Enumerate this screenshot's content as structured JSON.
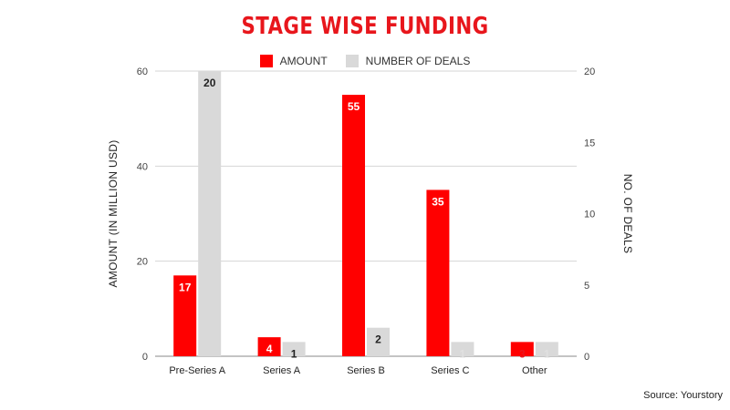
{
  "source": "Source: Yourstory",
  "chart_data": {
    "type": "bar",
    "title": "STAGE WISE FUNDING",
    "categories": [
      "Pre-Series A",
      "Series A",
      "Series B",
      "Series C",
      "Other"
    ],
    "series": [
      {
        "name": "AMOUNT",
        "axis": "left",
        "color": "#ff0000",
        "values": [
          17,
          4,
          55,
          35,
          3
        ],
        "labels": [
          "17",
          "4",
          "55",
          "35",
          "3"
        ],
        "label_colors": [
          "#ffffff",
          "#ffffff",
          "#ffffff",
          "#ffffff",
          "#e8161c"
        ]
      },
      {
        "name": "NUMBER OF DEALS",
        "axis": "right",
        "color": "#d9d9d9",
        "values": [
          20,
          1,
          2,
          1,
          1
        ],
        "labels": [
          "20",
          "1",
          "2",
          "1",
          "1"
        ],
        "label_colors": [
          "#222222",
          "#222222",
          "#222222",
          "#e0e0e0",
          "#e0e0e0"
        ]
      }
    ],
    "ylabel_left": "AMOUNT (IN MILLION USD)",
    "ylabel_right": "NO. OF DEALS",
    "ylim_left": [
      0,
      60
    ],
    "ylim_right": [
      0,
      20
    ],
    "yticks_left": [
      "0",
      "20",
      "40",
      "60"
    ],
    "yticks_right": [
      "0",
      "5",
      "10",
      "15",
      "20"
    ],
    "grid": true,
    "legend_position": "top"
  }
}
